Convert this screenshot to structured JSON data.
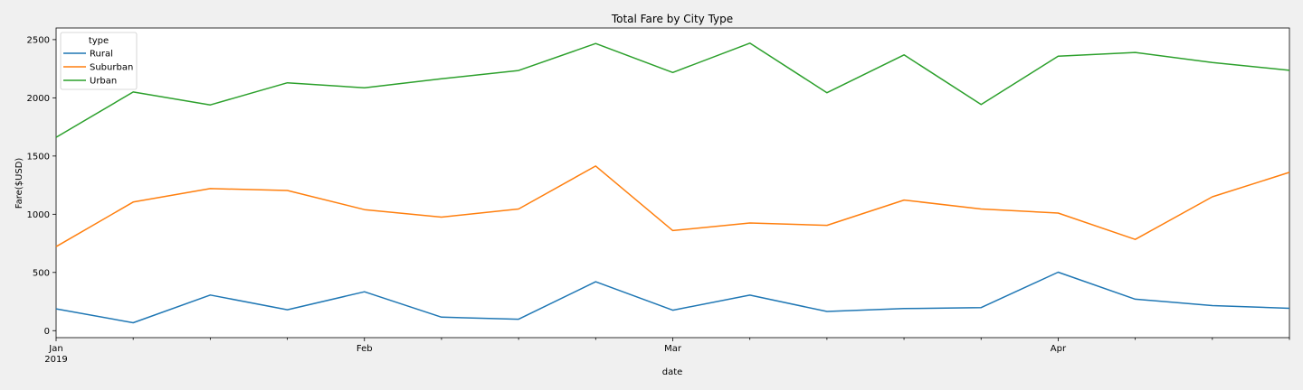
{
  "chart_data": {
    "type": "line",
    "title": "Total Fare by City Type",
    "xlabel": "date",
    "ylabel": "Fare($USD)",
    "x": [
      "2019-01-06",
      "2019-01-13",
      "2019-01-20",
      "2019-01-27",
      "2019-02-03",
      "2019-02-10",
      "2019-02-17",
      "2019-02-24",
      "2019-03-03",
      "2019-03-10",
      "2019-03-17",
      "2019-03-24",
      "2019-03-31",
      "2019-04-07",
      "2019-04-14",
      "2019-04-21",
      "2019-04-28"
    ],
    "x_tick_labels": [
      {
        "date": "2019-01-06",
        "label": "Jan",
        "sublabel": "2019"
      },
      {
        "date": "2019-02-03",
        "label": "Feb",
        "sublabel": ""
      },
      {
        "date": "2019-03-03",
        "label": "Mar",
        "sublabel": ""
      },
      {
        "date": "2019-04-07",
        "label": "Apr",
        "sublabel": ""
      }
    ],
    "y_ticks": [
      0,
      500,
      1000,
      1500,
      2000,
      2500
    ],
    "ylim": [
      -60,
      2600
    ],
    "legend": {
      "title": "type",
      "position": "top-left"
    },
    "series": [
      {
        "name": "Rural",
        "color": "#1f77b4",
        "values": [
          187,
          68,
          306,
          180,
          334,
          116,
          98,
          420,
          176,
          305,
          165,
          190,
          198,
          502,
          270,
          215,
          192
        ]
      },
      {
        "name": "Suburban",
        "color": "#ff7f0e",
        "values": [
          722,
          1105,
          1220,
          1204,
          1040,
          975,
          1045,
          1414,
          860,
          925,
          905,
          1122,
          1045,
          1010,
          784,
          1150,
          1360
        ]
      },
      {
        "name": "Urban",
        "color": "#2ca02c",
        "values": [
          1661,
          2050,
          1939,
          2129,
          2086,
          2163,
          2235,
          2467,
          2218,
          2470,
          2044,
          2369,
          1943,
          2357,
          2390,
          2304,
          2236
        ]
      }
    ]
  }
}
